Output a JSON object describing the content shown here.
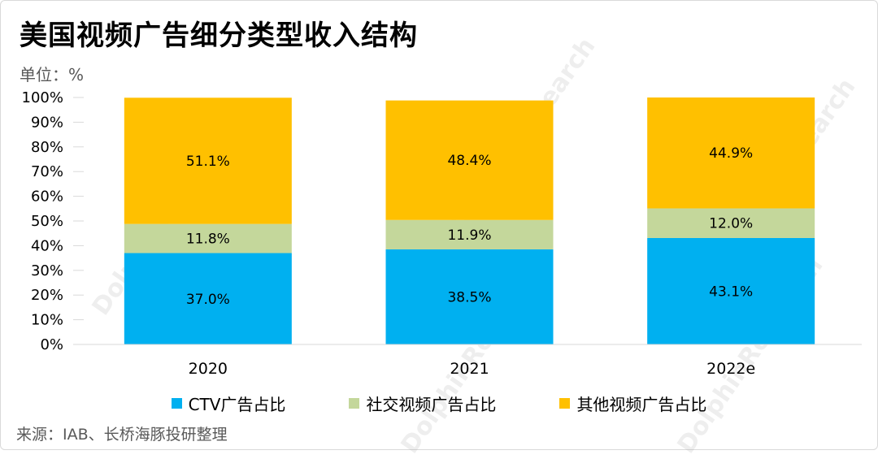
{
  "title": "美国视频广告细分类型收入结构",
  "unit_label": "单位：%",
  "source": "来源：IAB、长桥海豚投研整理",
  "chart_data": {
    "type": "bar",
    "stacked": true,
    "categories": [
      "2020",
      "2021",
      "2022e"
    ],
    "series": [
      {
        "name": "CTV广告占比",
        "color": "#00b0f0",
        "values": [
          37.0,
          38.5,
          43.1
        ],
        "labels": [
          "37.0%",
          "38.5%",
          "43.1%"
        ]
      },
      {
        "name": "社交视频广告占比",
        "color": "#c4d79b",
        "values": [
          11.8,
          11.9,
          12.0
        ],
        "labels": [
          "11.8%",
          "11.9%",
          "12.0%"
        ]
      },
      {
        "name": "其他视频广告占比",
        "color": "#ffc000",
        "values": [
          51.1,
          48.4,
          44.9
        ],
        "labels": [
          "51.1%",
          "48.4%",
          "44.9%"
        ]
      }
    ],
    "yticks": [
      "0%",
      "10%",
      "20%",
      "30%",
      "40%",
      "50%",
      "60%",
      "70%",
      "80%",
      "90%",
      "100%"
    ],
    "ylim": [
      0,
      100
    ],
    "grid": false,
    "legend_position": "bottom"
  }
}
